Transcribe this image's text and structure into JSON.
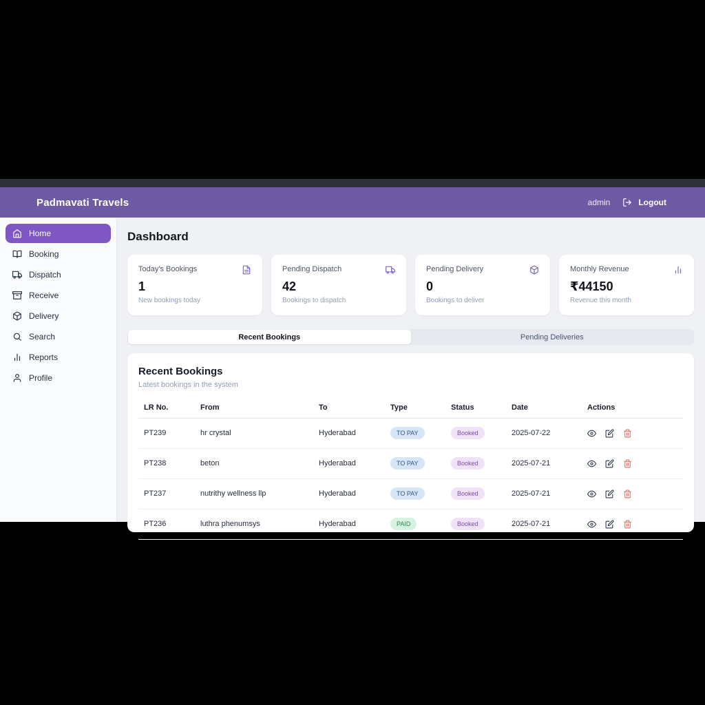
{
  "header": {
    "brand": "Padmavati Travels",
    "user": "admin",
    "logout_label": "Logout"
  },
  "sidebar": {
    "items": [
      {
        "label": "Home",
        "icon": "home-icon",
        "active": true
      },
      {
        "label": "Booking",
        "icon": "book-open-icon",
        "active": false
      },
      {
        "label": "Dispatch",
        "icon": "truck-icon",
        "active": false
      },
      {
        "label": "Receive",
        "icon": "archive-icon",
        "active": false
      },
      {
        "label": "Delivery",
        "icon": "package-icon",
        "active": false
      },
      {
        "label": "Search",
        "icon": "search-icon",
        "active": false
      },
      {
        "label": "Reports",
        "icon": "bar-chart-icon",
        "active": false
      },
      {
        "label": "Profile",
        "icon": "user-icon",
        "active": false
      }
    ]
  },
  "page": {
    "title": "Dashboard"
  },
  "stats": [
    {
      "title": "Today's Bookings",
      "value": "1",
      "subtitle": "New bookings today",
      "icon": "file-text-icon"
    },
    {
      "title": "Pending Dispatch",
      "value": "42",
      "subtitle": "Bookings to dispatch",
      "icon": "truck-icon"
    },
    {
      "title": "Pending Delivery",
      "value": "0",
      "subtitle": "Bookings to deliver",
      "icon": "package-icon"
    },
    {
      "title": "Monthly Revenue",
      "value": "₹44150",
      "subtitle": "Revenue this month",
      "icon": "bar-chart-icon"
    }
  ],
  "tabs": [
    {
      "label": "Recent Bookings",
      "active": true
    },
    {
      "label": "Pending Deliveries",
      "active": false
    }
  ],
  "table_card": {
    "title": "Recent Bookings",
    "subtitle": "Latest bookings in the system",
    "columns": [
      "LR No.",
      "From",
      "To",
      "Type",
      "Status",
      "Date",
      "Actions"
    ],
    "rows": [
      {
        "lr": "PT239",
        "from": "hr crystal",
        "to": "Hyderabad",
        "type": "TO PAY",
        "status": "Booked",
        "date": "2025-07-22"
      },
      {
        "lr": "PT238",
        "from": "beton",
        "to": "Hyderabad",
        "type": "TO PAY",
        "status": "Booked",
        "date": "2025-07-21"
      },
      {
        "lr": "PT237",
        "from": "nutrithy wellness llp",
        "to": "Hyderabad",
        "type": "TO PAY",
        "status": "Booked",
        "date": "2025-07-21"
      },
      {
        "lr": "PT236",
        "from": "luthra phenumsys",
        "to": "Hyderabad",
        "type": "PAID",
        "status": "Booked",
        "date": "2025-07-21"
      }
    ],
    "row_actions": [
      {
        "name": "view",
        "icon": "eye-icon"
      },
      {
        "name": "edit",
        "icon": "edit-icon"
      },
      {
        "name": "delete",
        "icon": "trash-icon"
      }
    ]
  },
  "colors": {
    "header_purple": "#6d5aa3",
    "active_nav_purple": "#7e57c2",
    "to_pay_badge_bg": "#d6e6f7",
    "paid_badge_bg": "#d6f3e1",
    "booked_badge_bg": "#efe1f8",
    "delete_icon_red": "#e06c6c"
  }
}
